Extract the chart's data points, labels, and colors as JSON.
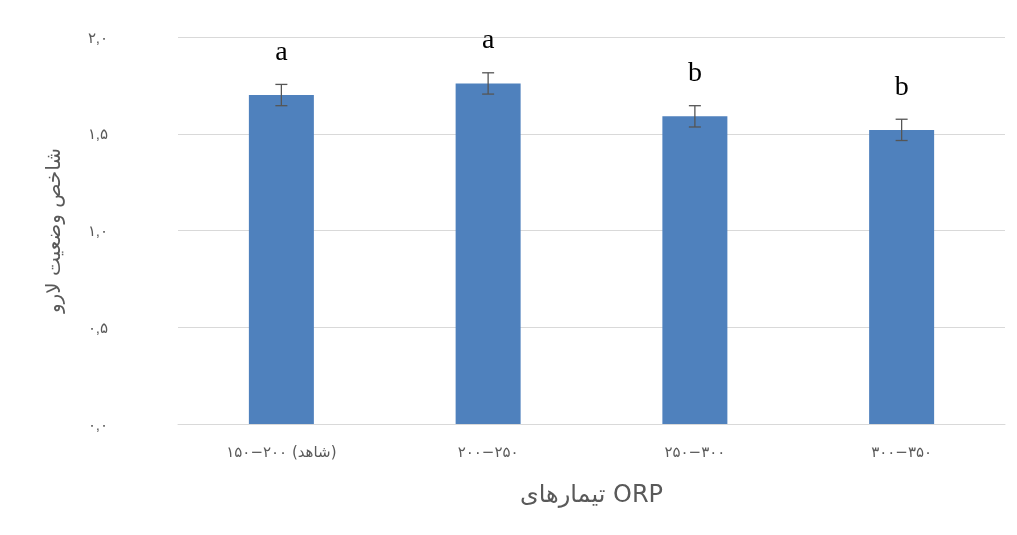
{
  "chart_data": {
    "type": "bar",
    "xlabel": "تیمارهای ORP",
    "ylabel": "شاخص وضعیت لارو",
    "categories": [
      "۱۵۰−۲۰۰ (شاهد)",
      "۲۰۰−۲۵۰",
      "۲۵۰−۳۰۰",
      "۳۰۰−۳۵۰"
    ],
    "values": [
      1.7,
      1.76,
      1.59,
      1.52
    ],
    "errors": [
      0.055,
      0.055,
      0.055,
      0.055
    ],
    "color": "#4f81bd",
    "ylim": [
      0,
      2
    ],
    "yticks": [
      {
        "value": 0,
        "label": "۰,۰"
      },
      {
        "value": 0.5,
        "label": "۰,۵"
      },
      {
        "value": 1,
        "label": "۱,۰"
      },
      {
        "value": 1.5,
        "label": "۱,۵"
      },
      {
        "value": 2,
        "label": "۲,۰"
      }
    ],
    "grid": "y",
    "annotations": [
      "a",
      "a",
      "b",
      "b"
    ]
  }
}
